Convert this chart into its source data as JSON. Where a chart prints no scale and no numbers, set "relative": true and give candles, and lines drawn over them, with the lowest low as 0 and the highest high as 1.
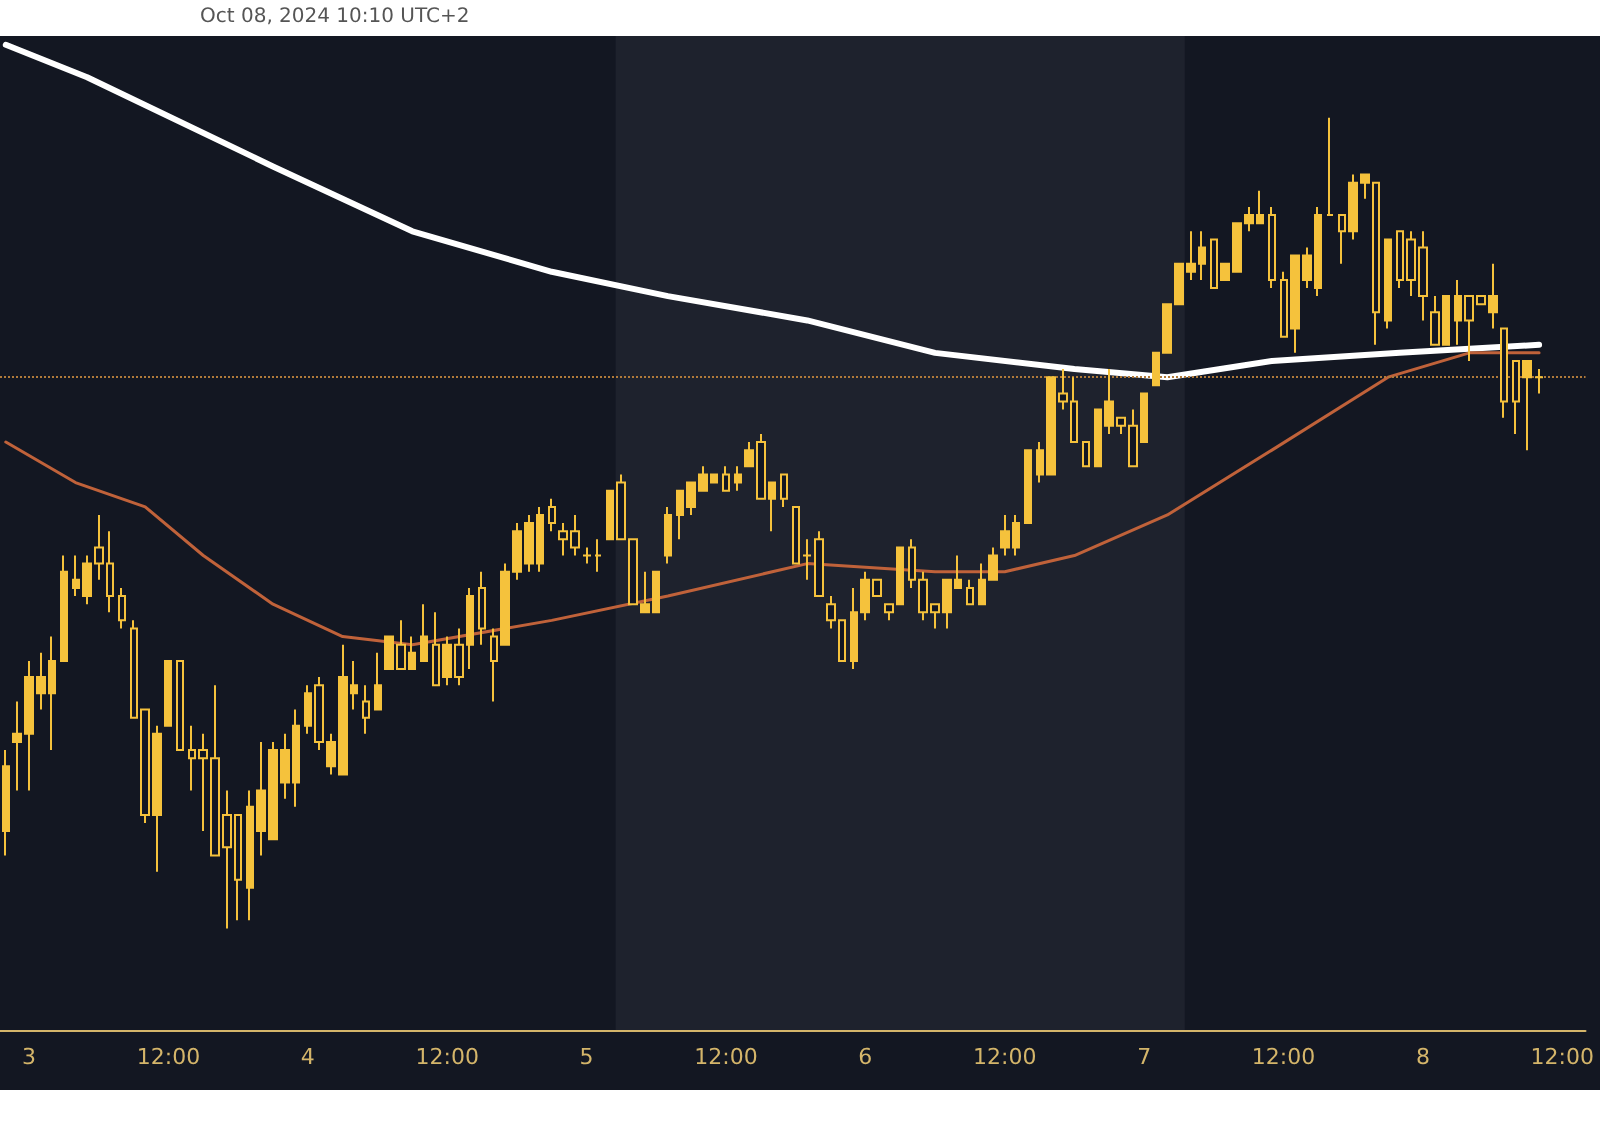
{
  "chart_data": {
    "type": "candlestick",
    "title": "Oct 08, 2024 10:10 UTC+2",
    "relative": true,
    "color": "#f5c23c",
    "grid": false,
    "marker": "none",
    "tick_labels": "x",
    "x": [
      "2024-10-02T22:00",
      "2024-10-02T23:00",
      "2024-10-03T00:00",
      "2024-10-03T01:00",
      "2024-10-03T02:00",
      "2024-10-03T03:00",
      "2024-10-03T04:00",
      "2024-10-03T05:00",
      "2024-10-03T06:00",
      "2024-10-03T07:00",
      "2024-10-03T08:00",
      "2024-10-03T09:00",
      "2024-10-03T10:00",
      "2024-10-03T11:00",
      "2024-10-03T12:00",
      "2024-10-03T13:00",
      "2024-10-03T14:00",
      "2024-10-03T15:00",
      "2024-10-03T16:00",
      "2024-10-03T17:00",
      "2024-10-03T18:00",
      "2024-10-03T19:00",
      "2024-10-03T20:00",
      "2024-10-03T21:00",
      "2024-10-03T22:00",
      "2024-10-03T23:00",
      "2024-10-04T00:00",
      "2024-10-04T01:00",
      "2024-10-04T02:00",
      "2024-10-04T03:00",
      "2024-10-04T04:00",
      "2024-10-04T05:00",
      "2024-10-04T06:00",
      "2024-10-04T07:00",
      "2024-10-04T08:00",
      "2024-10-04T09:00",
      "2024-10-04T10:00",
      "2024-10-04T11:00",
      "2024-10-04T12:00",
      "2024-10-04T13:00",
      "2024-10-04T14:00",
      "2024-10-04T15:00",
      "2024-10-04T16:00",
      "2024-10-04T17:00",
      "2024-10-04T18:00",
      "2024-10-04T19:00",
      "2024-10-04T20:00",
      "2024-10-04T21:00",
      "2024-10-04T22:00",
      "2024-10-04T23:00",
      "2024-10-05T00:00",
      "2024-10-05T01:00",
      "2024-10-05T02:00",
      "2024-10-05T03:00",
      "2024-10-05T04:00",
      "2024-10-05T05:00",
      "2024-10-05T06:00",
      "2024-10-05T07:00",
      "2024-10-05T08:00",
      "2024-10-05T09:00",
      "2024-10-05T10:00",
      "2024-10-05T11:00",
      "2024-10-05T12:00",
      "2024-10-05T13:00",
      "2024-10-05T14:00",
      "2024-10-05T15:00",
      "2024-10-05T16:00",
      "2024-10-05T17:00",
      "2024-10-05T18:00",
      "2024-10-05T19:00",
      "2024-10-05T20:00",
      "2024-10-05T21:00",
      "2024-10-05T22:00",
      "2024-10-05T23:00",
      "2024-10-06T00:00",
      "2024-10-06T01:00",
      "2024-10-06T02:00",
      "2024-10-06T03:00",
      "2024-10-06T04:00",
      "2024-10-06T05:00",
      "2024-10-06T06:00",
      "2024-10-06T07:00",
      "2024-10-06T08:00",
      "2024-10-06T09:00",
      "2024-10-06T10:00",
      "2024-10-06T11:00",
      "2024-10-06T12:00",
      "2024-10-06T13:00",
      "2024-10-06T14:00",
      "2024-10-06T15:00",
      "2024-10-06T16:00",
      "2024-10-06T17:00",
      "2024-10-06T18:00",
      "2024-10-06T19:00",
      "2024-10-06T20:00",
      "2024-10-06T21:00",
      "2024-10-06T22:00",
      "2024-10-06T23:00",
      "2024-10-07T00:00",
      "2024-10-07T01:00",
      "2024-10-07T02:00",
      "2024-10-07T03:00",
      "2024-10-07T04:00",
      "2024-10-07T05:00",
      "2024-10-07T06:00",
      "2024-10-07T07:00",
      "2024-10-07T08:00",
      "2024-10-07T09:00",
      "2024-10-07T10:00",
      "2024-10-07T11:00",
      "2024-10-07T12:00",
      "2024-10-07T13:00",
      "2024-10-07T14:00",
      "2024-10-07T15:00",
      "2024-10-07T16:00",
      "2024-10-07T17:00",
      "2024-10-07T18:00",
      "2024-10-07T19:00",
      "2024-10-07T20:00",
      "2024-10-07T21:00",
      "2024-10-07T22:00",
      "2024-10-07T23:00",
      "2024-10-08T00:00",
      "2024-10-08T01:00",
      "2024-10-08T02:00",
      "2024-10-08T03:00",
      "2024-10-08T04:00",
      "2024-10-08T05:00",
      "2024-10-08T06:00",
      "2024-10-08T07:00",
      "2024-10-08T08:00",
      "2024-10-08T09:00",
      "2024-10-08T10:00"
    ],
    "ohlc": [
      [
        0.12,
        0.22,
        0.09,
        0.2
      ],
      [
        0.23,
        0.28,
        0.17,
        0.24
      ],
      [
        0.24,
        0.33,
        0.17,
        0.31
      ],
      [
        0.29,
        0.34,
        0.27,
        0.31
      ],
      [
        0.29,
        0.36,
        0.22,
        0.33
      ],
      [
        0.33,
        0.46,
        0.33,
        0.44
      ],
      [
        0.42,
        0.46,
        0.41,
        0.43
      ],
      [
        0.41,
        0.46,
        0.4,
        0.45
      ],
      [
        0.47,
        0.51,
        0.43,
        0.45
      ],
      [
        0.45,
        0.49,
        0.39,
        0.41
      ],
      [
        0.41,
        0.42,
        0.37,
        0.38
      ],
      [
        0.37,
        0.38,
        0.26,
        0.26
      ],
      [
        0.27,
        0.27,
        0.13,
        0.14
      ],
      [
        0.14,
        0.25,
        0.07,
        0.24
      ],
      [
        0.25,
        0.33,
        0.25,
        0.33
      ],
      [
        0.33,
        0.33,
        0.22,
        0.22
      ],
      [
        0.22,
        0.25,
        0.17,
        0.21
      ],
      [
        0.22,
        0.24,
        0.12,
        0.21
      ],
      [
        0.21,
        0.3,
        0.09,
        0.09
      ],
      [
        0.14,
        0.17,
        0,
        0.1
      ],
      [
        0.14,
        0.14,
        0.01,
        0.06
      ],
      [
        0.05,
        0.17,
        0.01,
        0.15
      ],
      [
        0.12,
        0.23,
        0.09,
        0.17
      ],
      [
        0.11,
        0.23,
        0.11,
        0.22
      ],
      [
        0.18,
        0.24,
        0.16,
        0.22
      ],
      [
        0.18,
        0.27,
        0.15,
        0.25
      ],
      [
        0.25,
        0.3,
        0.24,
        0.29
      ],
      [
        0.3,
        0.31,
        0.22,
        0.23
      ],
      [
        0.2,
        0.24,
        0.19,
        0.23
      ],
      [
        0.19,
        0.35,
        0.19,
        0.31
      ],
      [
        0.29,
        0.33,
        0.27,
        0.3
      ],
      [
        0.28,
        0.3,
        0.24,
        0.26
      ],
      [
        0.27,
        0.34,
        0.27,
        0.3
      ],
      [
        0.32,
        0.36,
        0.32,
        0.36
      ],
      [
        0.35,
        0.38,
        0.32,
        0.32
      ],
      [
        0.32,
        0.36,
        0.32,
        0.34
      ],
      [
        0.33,
        0.4,
        0.33,
        0.36
      ],
      [
        0.35,
        0.39,
        0.3,
        0.3
      ],
      [
        0.31,
        0.36,
        0.3,
        0.35
      ],
      [
        0.35,
        0.37,
        0.3,
        0.31
      ],
      [
        0.35,
        0.42,
        0.32,
        0.41
      ],
      [
        0.42,
        0.44,
        0.35,
        0.37
      ],
      [
        0.36,
        0.37,
        0.28,
        0.33
      ],
      [
        0.35,
        0.45,
        0.35,
        0.44
      ],
      [
        0.44,
        0.5,
        0.43,
        0.49
      ],
      [
        0.45,
        0.51,
        0.44,
        0.5
      ],
      [
        0.45,
        0.52,
        0.44,
        0.51
      ],
      [
        0.52,
        0.53,
        0.49,
        0.5
      ],
      [
        0.49,
        0.5,
        0.46,
        0.48
      ],
      [
        0.49,
        0.51,
        0.46,
        0.47
      ],
      [
        0.46,
        0.47,
        0.45,
        0.46
      ],
      [
        0.46,
        0.48,
        0.44,
        0.46
      ],
      [
        0.48,
        0.54,
        0.48,
        0.54
      ],
      [
        0.55,
        0.56,
        0.48,
        0.48
      ],
      [
        0.48,
        0.48,
        0.4,
        0.4
      ],
      [
        0.39,
        0.44,
        0.39,
        0.4
      ],
      [
        0.39,
        0.44,
        0.39,
        0.44
      ],
      [
        0.46,
        0.52,
        0.45,
        0.51
      ],
      [
        0.51,
        0.54,
        0.48,
        0.54
      ],
      [
        0.52,
        0.55,
        0.51,
        0.55
      ],
      [
        0.54,
        0.57,
        0.54,
        0.56
      ],
      [
        0.55,
        0.56,
        0.55,
        0.56
      ],
      [
        0.56,
        0.57,
        0.54,
        0.54
      ],
      [
        0.55,
        0.57,
        0.54,
        0.56
      ],
      [
        0.57,
        0.6,
        0.57,
        0.59
      ],
      [
        0.6,
        0.61,
        0.53,
        0.53
      ],
      [
        0.53,
        0.55,
        0.49,
        0.55
      ],
      [
        0.56,
        0.56,
        0.52,
        0.53
      ],
      [
        0.52,
        0.52,
        0.45,
        0.45
      ],
      [
        0.46,
        0.48,
        0.43,
        0.46
      ],
      [
        0.48,
        0.49,
        0.41,
        0.41
      ],
      [
        0.4,
        0.41,
        0.37,
        0.38
      ],
      [
        0.38,
        0.38,
        0.33,
        0.33
      ],
      [
        0.33,
        0.42,
        0.32,
        0.39
      ],
      [
        0.39,
        0.44,
        0.38,
        0.43
      ],
      [
        0.43,
        0.43,
        0.41,
        0.41
      ],
      [
        0.4,
        0.4,
        0.38,
        0.39
      ],
      [
        0.4,
        0.47,
        0.4,
        0.47
      ],
      [
        0.47,
        0.48,
        0.42,
        0.43
      ],
      [
        0.43,
        0.44,
        0.38,
        0.39
      ],
      [
        0.4,
        0.4,
        0.37,
        0.39
      ],
      [
        0.39,
        0.43,
        0.37,
        0.43
      ],
      [
        0.42,
        0.46,
        0.42,
        0.43
      ],
      [
        0.42,
        0.43,
        0.4,
        0.4
      ],
      [
        0.4,
        0.45,
        0.4,
        0.43
      ],
      [
        0.43,
        0.47,
        0.43,
        0.46
      ],
      [
        0.47,
        0.51,
        0.46,
        0.49
      ],
      [
        0.47,
        0.51,
        0.46,
        0.5
      ],
      [
        0.5,
        0.59,
        0.5,
        0.59
      ],
      [
        0.56,
        0.6,
        0.55,
        0.59
      ],
      [
        0.56,
        0.68,
        0.56,
        0.68
      ],
      [
        0.66,
        0.69,
        0.64,
        0.65
      ],
      [
        0.65,
        0.68,
        0.6,
        0.6
      ],
      [
        0.6,
        0.6,
        0.57,
        0.57
      ],
      [
        0.57,
        0.64,
        0.57,
        0.64
      ],
      [
        0.62,
        0.69,
        0.61,
        0.65
      ],
      [
        0.63,
        0.63,
        0.61,
        0.62
      ],
      [
        0.62,
        0.64,
        0.57,
        0.57
      ],
      [
        0.6,
        0.66,
        0.6,
        0.66
      ],
      [
        0.67,
        0.71,
        0.67,
        0.71
      ],
      [
        0.71,
        0.77,
        0.71,
        0.77
      ],
      [
        0.77,
        0.82,
        0.77,
        0.82
      ],
      [
        0.81,
        0.86,
        0.8,
        0.82
      ],
      [
        0.82,
        0.86,
        0.8,
        0.84
      ],
      [
        0.85,
        0.85,
        0.79,
        0.79
      ],
      [
        0.8,
        0.82,
        0.8,
        0.82
      ],
      [
        0.81,
        0.87,
        0.81,
        0.87
      ],
      [
        0.87,
        0.89,
        0.86,
        0.88
      ],
      [
        0.87,
        0.91,
        0.87,
        0.88
      ],
      [
        0.88,
        0.89,
        0.79,
        0.8
      ],
      [
        0.8,
        0.81,
        0.73,
        0.73
      ],
      [
        0.74,
        0.83,
        0.71,
        0.83
      ],
      [
        0.8,
        0.84,
        0.79,
        0.83
      ],
      [
        0.79,
        0.89,
        0.78,
        0.88
      ],
      [
        0.88,
        1,
        0.88,
        0.88
      ],
      [
        0.88,
        0.88,
        0.82,
        0.86
      ],
      [
        0.86,
        0.93,
        0.85,
        0.92
      ],
      [
        0.92,
        0.93,
        0.9,
        0.93
      ],
      [
        0.92,
        0.92,
        0.72,
        0.76
      ],
      [
        0.75,
        0.85,
        0.74,
        0.85
      ],
      [
        0.86,
        0.86,
        0.79,
        0.8
      ],
      [
        0.85,
        0.86,
        0.78,
        0.8
      ],
      [
        0.84,
        0.86,
        0.75,
        0.78
      ],
      [
        0.76,
        0.78,
        0.72,
        0.72
      ],
      [
        0.72,
        0.78,
        0.72,
        0.78
      ],
      [
        0.75,
        0.8,
        0.72,
        0.78
      ],
      [
        0.78,
        0.78,
        0.7,
        0.75
      ],
      [
        0.78,
        0.78,
        0.77,
        0.77
      ],
      [
        0.76,
        0.82,
        0.74,
        0.78
      ],
      [
        0.74,
        0.74,
        0.63,
        0.65
      ],
      [
        0.7,
        0.7,
        0.61,
        0.65
      ],
      [
        0.68,
        0.7,
        0.59,
        0.7
      ],
      [
        0.68,
        0.69,
        0.66,
        0.68
      ]
    ],
    "series": [
      {
        "type": "line",
        "color": "#ffffff",
        "x": [
          "2024-10-02T22:00",
          "2024-10-03T05:00",
          "2024-10-03T21:00",
          "2024-10-04T09:00",
          "2024-10-04T21:00",
          "2024-10-05T07:00",
          "2024-10-05T19:00",
          "2024-10-06T06:00",
          "2024-10-06T18:00",
          "2024-10-07T02:00",
          "2024-10-07T11:00",
          "2024-10-07T22:00",
          "2024-10-08T10:00"
        ],
        "values": [
          1.09,
          1.05,
          0.94,
          0.86,
          0.81,
          0.78,
          0.75,
          0.71,
          0.69,
          0.68,
          0.7,
          0.71,
          0.72
        ]
      },
      {
        "type": "line",
        "color": "#c0623a",
        "x": [
          "2024-10-02T22:00",
          "2024-10-03T04:00",
          "2024-10-03T10:00",
          "2024-10-03T15:00",
          "2024-10-03T21:00",
          "2024-10-04T03:00",
          "2024-10-04T09:00",
          "2024-10-04T21:00",
          "2024-10-05T07:00",
          "2024-10-05T19:00",
          "2024-10-06T06:00",
          "2024-10-06T12:00",
          "2024-10-06T18:00",
          "2024-10-07T02:00",
          "2024-10-07T11:00",
          "2024-10-07T21:00",
          "2024-10-08T04:00",
          "2024-10-08T10:00"
        ],
        "values": [
          0.6,
          0.55,
          0.52,
          0.46,
          0.4,
          0.36,
          0.35,
          0.38,
          0.41,
          0.45,
          0.44,
          0.44,
          0.46,
          0.51,
          0.59,
          0.68,
          0.71,
          0.71
        ]
      }
    ],
    "xlim": [
      "2024-10-02T21:30",
      "2024-10-08T14:00"
    ],
    "xticks": [
      {
        "value": "2024-10-03T00:00",
        "label": "3"
      },
      {
        "value": "2024-10-03T12:00",
        "label": "12:00"
      },
      {
        "value": "2024-10-04T00:00",
        "label": "4"
      },
      {
        "value": "2024-10-04T12:00",
        "label": "12:00"
      },
      {
        "value": "2024-10-05T00:00",
        "label": "5"
      },
      {
        "value": "2024-10-05T12:00",
        "label": "12:00"
      },
      {
        "value": "2024-10-06T00:00",
        "label": "6"
      },
      {
        "value": "2024-10-06T12:00",
        "label": "12:00"
      },
      {
        "value": "2024-10-07T00:00",
        "label": "7"
      },
      {
        "value": "2024-10-07T12:00",
        "label": "12:00"
      },
      {
        "value": "2024-10-08T00:00",
        "label": "8"
      },
      {
        "value": "2024-10-08T12:00",
        "label": "12:00"
      }
    ],
    "bands": [
      {
        "axis": "x",
        "from": "2024-10-05T02:30",
        "to": "2024-10-07T03:30",
        "color": "#1e222d"
      }
    ],
    "ref_lines": [
      {
        "axis": "y",
        "value": 0.68,
        "color": "#b07a3a",
        "line_style": "dotted"
      }
    ]
  }
}
